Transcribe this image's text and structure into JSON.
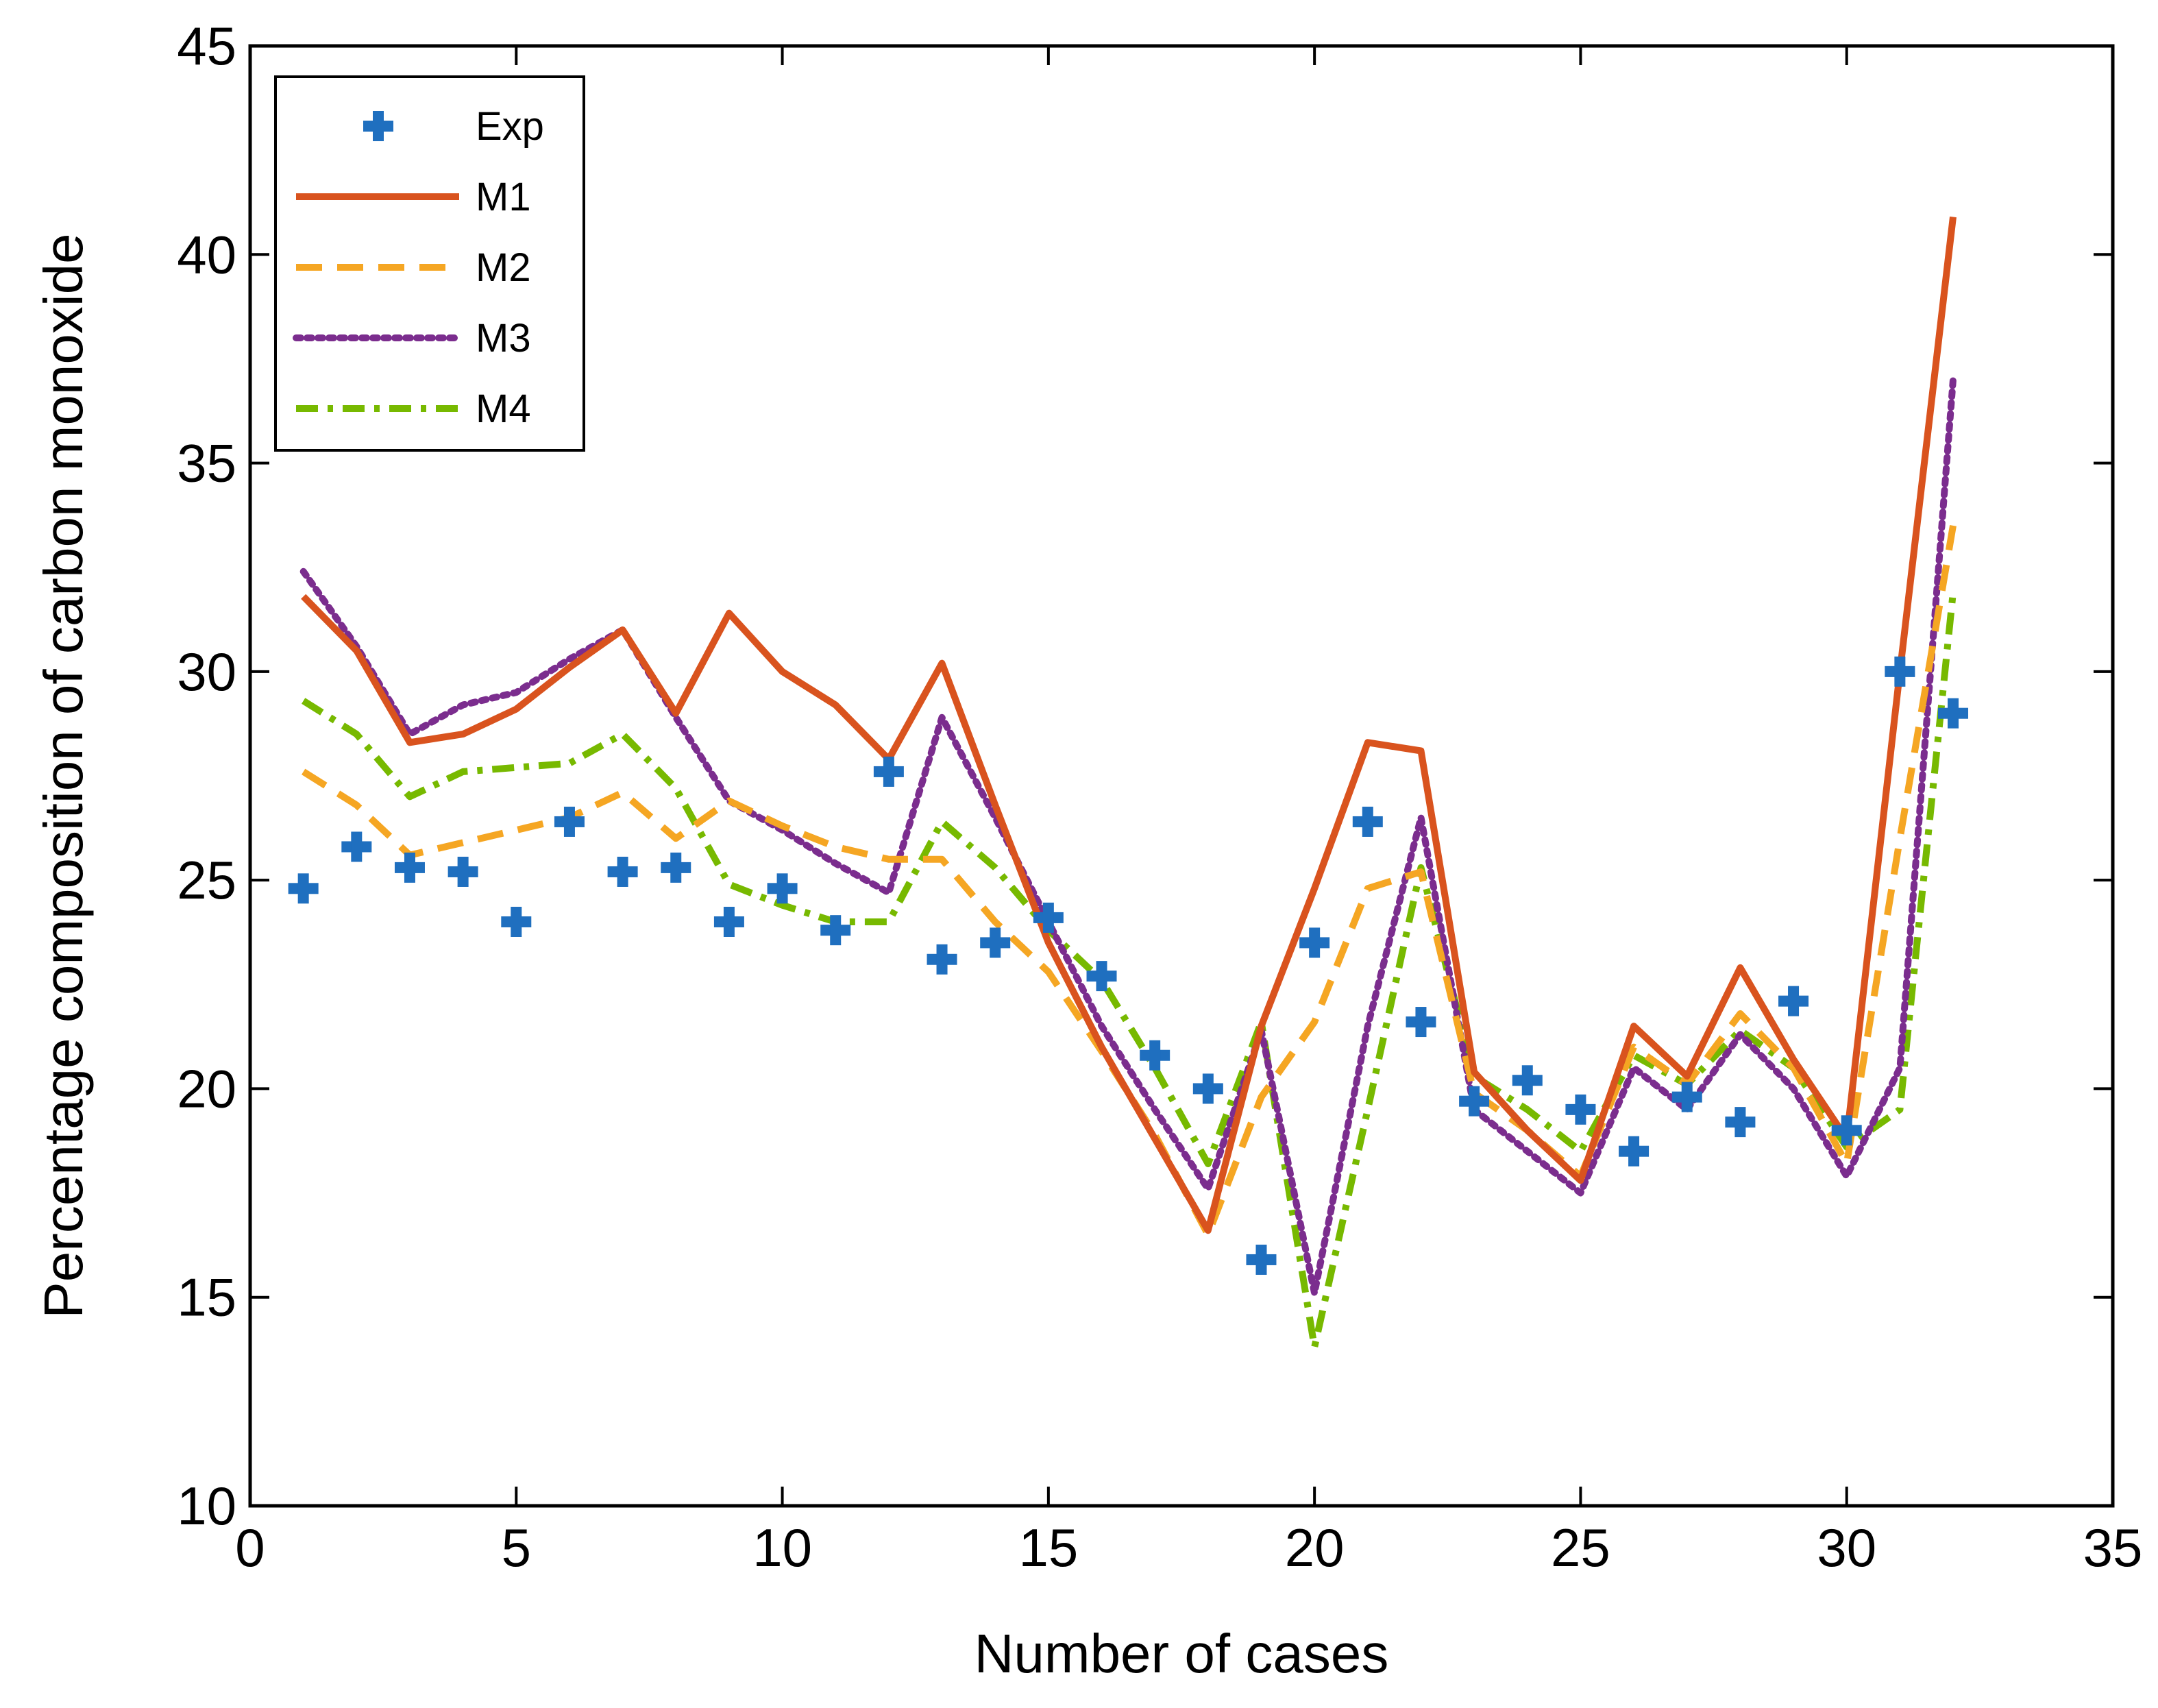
{
  "chart_data": {
    "type": "line",
    "xlabel": "Number of cases",
    "ylabel": "Percentage composition of carbon monoxide",
    "xlim": [
      0,
      35
    ],
    "ylim": [
      10,
      45
    ],
    "xticks": [
      0,
      5,
      10,
      15,
      20,
      25,
      30,
      35
    ],
    "yticks": [
      10,
      15,
      20,
      25,
      30,
      35,
      40,
      45
    ],
    "grid": false,
    "legend_position": "top-left",
    "x": [
      1,
      2,
      3,
      4,
      5,
      6,
      7,
      8,
      9,
      10,
      11,
      12,
      13,
      14,
      15,
      16,
      17,
      18,
      19,
      20,
      21,
      22,
      23,
      24,
      25,
      26,
      27,
      28,
      29,
      30,
      31,
      32
    ],
    "series": [
      {
        "name": "Exp",
        "style": "plus-marker",
        "color": "#1f6fbf",
        "values": [
          24.8,
          25.8,
          25.3,
          25.2,
          24.0,
          26.4,
          25.2,
          25.3,
          24.0,
          24.8,
          23.8,
          27.6,
          23.1,
          23.5,
          24.1,
          22.7,
          20.8,
          20.0,
          15.9,
          23.5,
          26.4,
          21.6,
          19.7,
          20.2,
          19.5,
          18.5,
          19.8,
          19.2,
          22.1,
          19.0,
          30.0,
          29.0
        ]
      },
      {
        "name": "M1",
        "style": "solid",
        "color": "#d9531e",
        "values": [
          31.8,
          30.5,
          28.3,
          28.5,
          29.1,
          30.1,
          31.0,
          29.0,
          31.4,
          30.0,
          29.2,
          27.9,
          30.2,
          26.8,
          23.5,
          21.0,
          18.8,
          16.6,
          21.5,
          24.8,
          28.3,
          28.1,
          20.4,
          19.0,
          17.8,
          21.5,
          20.3,
          22.9,
          20.7,
          18.8,
          30.0,
          40.9
        ]
      },
      {
        "name": "M2",
        "style": "dashed",
        "color": "#f5a623",
        "values": [
          27.6,
          26.8,
          25.6,
          25.9,
          26.2,
          26.5,
          27.1,
          26.0,
          26.9,
          26.3,
          25.8,
          25.5,
          25.5,
          24.0,
          22.8,
          20.9,
          18.9,
          16.5,
          19.8,
          21.6,
          24.8,
          25.2,
          19.9,
          19.0,
          17.9,
          21.0,
          20.1,
          21.8,
          20.5,
          18.2,
          26.0,
          33.5
        ]
      },
      {
        "name": "M3",
        "style": "dotted",
        "color": "#7b2d8e",
        "values": [
          32.4,
          30.6,
          28.5,
          29.2,
          29.5,
          30.3,
          31.0,
          28.9,
          26.9,
          26.2,
          25.4,
          24.7,
          28.9,
          26.5,
          24.0,
          21.5,
          19.5,
          17.6,
          21.4,
          15.1,
          21.5,
          26.5,
          19.5,
          18.5,
          17.5,
          20.5,
          19.5,
          21.3,
          20.0,
          17.9,
          20.5,
          37.0
        ]
      },
      {
        "name": "M4",
        "style": "dashdot",
        "color": "#77b900",
        "values": [
          29.3,
          28.5,
          27.0,
          27.6,
          27.7,
          27.8,
          28.5,
          27.2,
          24.9,
          24.4,
          24.0,
          24.0,
          26.4,
          25.3,
          23.8,
          22.6,
          20.5,
          18.2,
          21.6,
          13.8,
          19.5,
          25.3,
          20.3,
          19.5,
          18.5,
          20.8,
          20.1,
          21.4,
          20.5,
          18.6,
          19.5,
          31.9
        ]
      }
    ]
  }
}
